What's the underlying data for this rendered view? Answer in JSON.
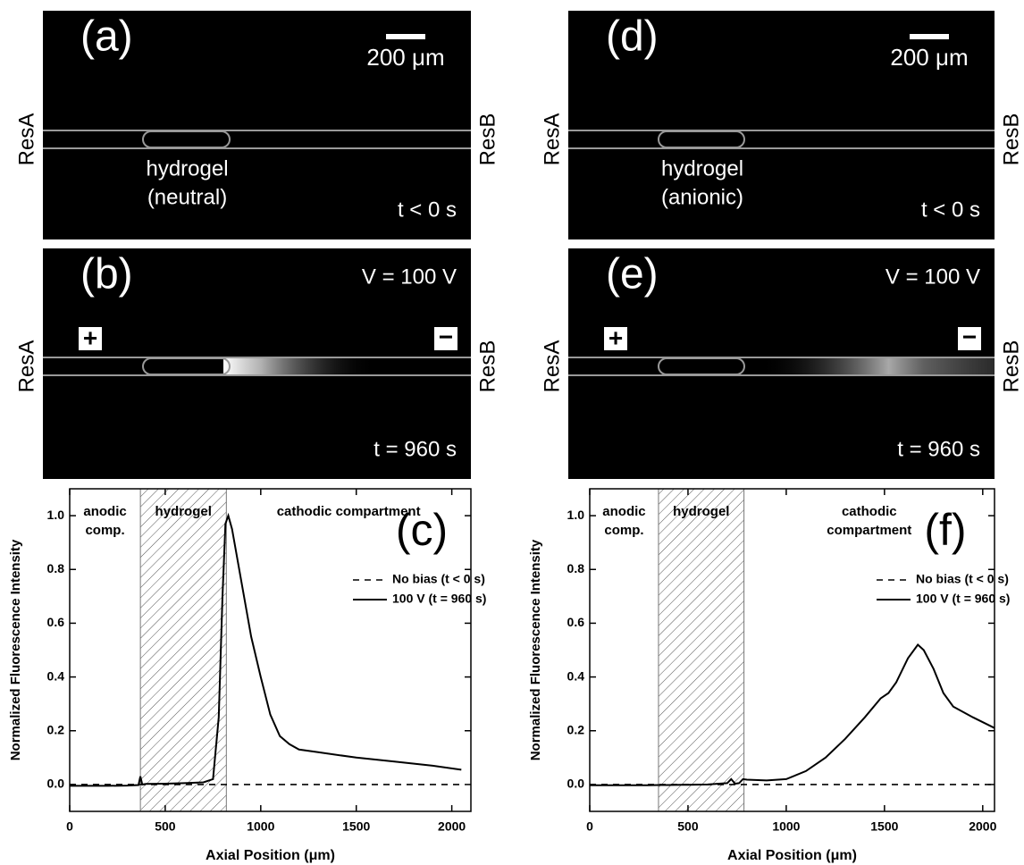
{
  "reservoirs": {
    "left": "ResA",
    "right": "ResB"
  },
  "panels": {
    "a": {
      "label": "(a)",
      "scale_bar": "200 μm",
      "gel_label": [
        "hydrogel",
        "(neutral)"
      ],
      "time": "t < 0 s"
    },
    "b": {
      "label": "(b)",
      "voltage": "V = 100 V",
      "time": "t = 960 s",
      "anode": "+",
      "cathode": "−"
    },
    "d": {
      "label": "(d)",
      "scale_bar": "200 μm",
      "gel_label": [
        "hydrogel",
        "(anionic)"
      ],
      "time": "t < 0 s"
    },
    "e": {
      "label": "(e)",
      "voltage": "V = 100 V",
      "time": "t = 960 s",
      "anode": "+",
      "cathode": "−"
    }
  },
  "chart_data": [
    {
      "type": "line",
      "panel_label": "(c)",
      "x_label": "Axial Position (μm)",
      "y_label": "Normalized Fluorescence Intensity",
      "xlim": [
        0,
        2100
      ],
      "ylim": [
        -0.1,
        1.1
      ],
      "xticks": [
        0,
        500,
        1000,
        1500,
        2000
      ],
      "yticks": [
        {
          "value": 0,
          "label": "0.0"
        },
        {
          "value": 0.2,
          "label": "0.2"
        },
        {
          "value": 0.4,
          "label": "0.4"
        },
        {
          "value": 0.6,
          "label": "0.6"
        },
        {
          "value": 0.8,
          "label": "0.8"
        },
        {
          "value": 1,
          "label": "1.0"
        }
      ],
      "hydrogel_region": [
        370,
        820
      ],
      "region_labels": {
        "anodic": [
          "anodic",
          "comp."
        ],
        "hydrogel": [
          "hydrogel"
        ],
        "cathodic": [
          "cathodic compartment"
        ]
      },
      "x": [
        0,
        100,
        200,
        300,
        360,
        370,
        380,
        400,
        500,
        600,
        700,
        750,
        780,
        800,
        815,
        830,
        850,
        900,
        950,
        1000,
        1050,
        1100,
        1150,
        1200,
        1300,
        1500,
        1700,
        1900,
        2050
      ],
      "series": [
        {
          "name": "No bias (t < 0 s)",
          "color": "#000000",
          "dash": true,
          "values": [
            0,
            0,
            0,
            0,
            0,
            0,
            0,
            0,
            0,
            0,
            0,
            0,
            0,
            0,
            0,
            0,
            0,
            0,
            0,
            0,
            0,
            0,
            0,
            0,
            0,
            0,
            0,
            0,
            0
          ]
        },
        {
          "name": "100 V (t = 960 s)",
          "color": "#000000",
          "dash": false,
          "values": [
            -0.005,
            -0.005,
            -0.005,
            -0.004,
            -0.002,
            0.03,
            0.0,
            0.002,
            0.003,
            0.005,
            0.008,
            0.02,
            0.25,
            0.7,
            0.97,
            1.0,
            0.95,
            0.75,
            0.55,
            0.4,
            0.26,
            0.18,
            0.15,
            0.13,
            0.12,
            0.1,
            0.085,
            0.07,
            0.055
          ]
        }
      ]
    },
    {
      "type": "line",
      "panel_label": "(f)",
      "x_label": "Axial Position (μm)",
      "y_label": "Normalized Fluorescence Intensity",
      "xlim": [
        0,
        2060
      ],
      "ylim": [
        -0.1,
        1.1
      ],
      "xticks": [
        0,
        500,
        1000,
        1500,
        2000
      ],
      "yticks": [
        {
          "value": 0,
          "label": "0.0"
        },
        {
          "value": 0.2,
          "label": "0.2"
        },
        {
          "value": 0.4,
          "label": "0.4"
        },
        {
          "value": 0.6,
          "label": "0.6"
        },
        {
          "value": 0.8,
          "label": "0.8"
        },
        {
          "value": 1,
          "label": "1.0"
        }
      ],
      "hydrogel_region": [
        350,
        785
      ],
      "region_labels": {
        "anodic": [
          "anodic",
          "comp."
        ],
        "hydrogel": [
          "hydrogel"
        ],
        "cathodic": [
          "cathodic",
          "compartment"
        ]
      },
      "x": [
        0,
        100,
        200,
        300,
        350,
        400,
        500,
        600,
        700,
        720,
        740,
        760,
        780,
        800,
        900,
        1000,
        1100,
        1200,
        1300,
        1400,
        1480,
        1520,
        1560,
        1620,
        1670,
        1700,
        1750,
        1800,
        1850,
        1950,
        2060
      ],
      "series": [
        {
          "name": "No bias (t < 0 s)",
          "color": "#000000",
          "dash": true,
          "values": [
            0,
            0,
            0,
            0,
            0,
            0,
            0,
            0,
            0,
            0,
            0,
            0,
            0,
            0,
            0,
            0,
            0,
            0,
            0,
            0,
            0,
            0,
            0,
            0,
            0,
            0,
            0,
            0,
            0,
            0,
            0
          ]
        },
        {
          "name": "100 V (t = 960 s)",
          "color": "#000000",
          "dash": false,
          "values": [
            -0.003,
            -0.003,
            -0.003,
            -0.003,
            -0.002,
            -0.002,
            -0.001,
            0,
            0.005,
            0.02,
            0.003,
            0.005,
            0.02,
            0.018,
            0.015,
            0.02,
            0.05,
            0.1,
            0.17,
            0.25,
            0.32,
            0.34,
            0.38,
            0.47,
            0.52,
            0.5,
            0.43,
            0.34,
            0.29,
            0.25,
            0.21
          ]
        }
      ]
    }
  ]
}
